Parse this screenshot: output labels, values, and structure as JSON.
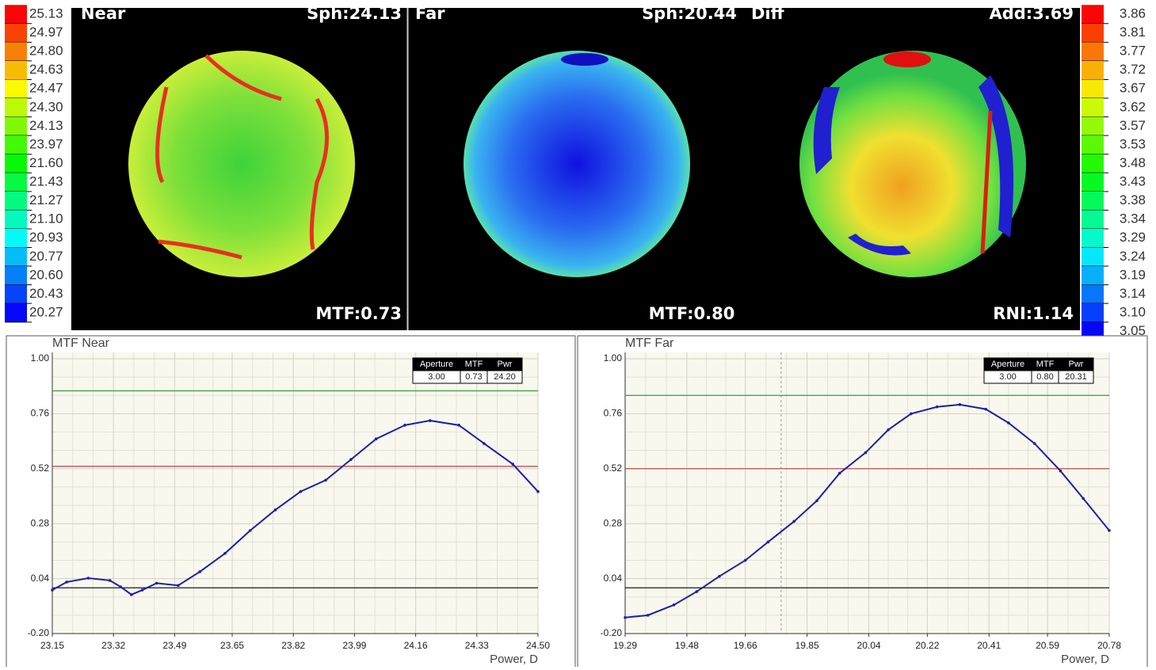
{
  "map_panel": {
    "left_scale": [
      "25.13",
      "24.97",
      "24.80",
      "24.63",
      "24.47",
      "24.30",
      "24.13",
      "23.97",
      "21.60",
      "21.43",
      "21.27",
      "21.10",
      "20.93",
      "20.77",
      "20.60",
      "20.43",
      "20.27"
    ],
    "right_scale": [
      "3.86",
      "3.81",
      "3.77",
      "3.72",
      "3.67",
      "3.62",
      "3.57",
      "3.53",
      "3.48",
      "3.43",
      "3.38",
      "3.34",
      "3.29",
      "3.24",
      "3.19",
      "3.14",
      "3.10",
      "3.05"
    ],
    "maps": [
      {
        "title": "Near",
        "header": "Sph:24.13",
        "footer": "MTF:0.73"
      },
      {
        "title": "Far",
        "header": "Sph:20.44",
        "footer": "MTF:0.80"
      },
      {
        "title": "Diff",
        "header": "Add:3.69",
        "footer": "RNI:1.14"
      }
    ]
  },
  "chart_data": [
    {
      "type": "line",
      "title": "MTF Near",
      "x_label": "Power, D",
      "x": [
        23.15,
        23.19,
        23.25,
        23.31,
        23.34,
        23.37,
        23.4,
        23.44,
        23.5,
        23.56,
        23.63,
        23.7,
        23.77,
        23.84,
        23.91,
        23.98,
        24.05,
        24.13,
        24.2,
        24.28,
        24.35,
        24.43,
        24.5
      ],
      "values": [
        -0.01,
        0.025,
        0.042,
        0.032,
        0.004,
        -0.03,
        -0.01,
        0.02,
        0.01,
        0.07,
        0.15,
        0.25,
        0.34,
        0.42,
        0.47,
        0.56,
        0.65,
        0.71,
        0.73,
        0.71,
        0.63,
        0.54,
        0.42
      ],
      "color": "#1f1fa8",
      "xlim": [
        23.15,
        24.5
      ],
      "xticks": [
        23.15,
        23.32,
        23.49,
        23.65,
        23.82,
        23.99,
        24.16,
        24.33,
        {
          "value": 24.5,
          "label": "24.50"
        }
      ],
      "ylim": [
        -0.2,
        1.0
      ],
      "yticks": [
        {
          "value": -0.2,
          "label": "-0.20"
        },
        0.04,
        0.28,
        0.52,
        0.76,
        {
          "value": 1.0,
          "label": "1.00"
        }
      ],
      "reference_lines": [
        {
          "value": 0.86,
          "color": "#3c9a3c"
        },
        {
          "value": 0.53,
          "color": "#b04040"
        },
        {
          "value": 0,
          "color": "#000000"
        }
      ],
      "info_table": {
        "headers": [
          "Aperture",
          "MTF",
          "Pwr"
        ],
        "values": [
          "3.00",
          "0.73",
          "24.20"
        ]
      },
      "grid": true
    },
    {
      "type": "line",
      "title": "MTF Far",
      "x_label": "Power, D",
      "x": [
        19.29,
        19.36,
        19.44,
        19.51,
        19.58,
        19.66,
        19.73,
        19.81,
        19.88,
        19.95,
        20.03,
        20.1,
        20.17,
        20.25,
        20.32,
        20.4,
        20.47,
        20.55,
        20.63,
        20.7,
        20.78
      ],
      "values": [
        -0.13,
        -0.12,
        -0.075,
        -0.017,
        0.05,
        0.12,
        0.2,
        0.29,
        0.38,
        0.5,
        0.59,
        0.69,
        0.76,
        0.79,
        0.8,
        0.78,
        0.72,
        0.63,
        0.51,
        0.39,
        0.25
      ],
      "color": "#1f1fa8",
      "xlim": [
        19.29,
        20.78
      ],
      "xticks": [
        19.29,
        19.48,
        19.66,
        19.85,
        20.04,
        20.22,
        20.41,
        20.59,
        20.78
      ],
      "ylim": [
        -0.2,
        1.0
      ],
      "yticks": [
        {
          "value": -0.2,
          "label": "-0.20"
        },
        0.04,
        0.28,
        0.52,
        0.76,
        {
          "value": 1.0,
          "label": "1.00"
        }
      ],
      "reference_lines": [
        {
          "value": 0.84,
          "color": "#3c9a3c"
        },
        {
          "value": 0.52,
          "color": "#b04040"
        },
        {
          "value": 0,
          "color": "#000000"
        }
      ],
      "vertical_lines": [
        {
          "value": 19.77,
          "color": "#999999"
        }
      ],
      "info_table": {
        "headers": [
          "Aperture",
          "MTF",
          "Pwr"
        ],
        "values": [
          "3.00",
          "0.80",
          "20.31"
        ]
      },
      "grid": true
    }
  ]
}
